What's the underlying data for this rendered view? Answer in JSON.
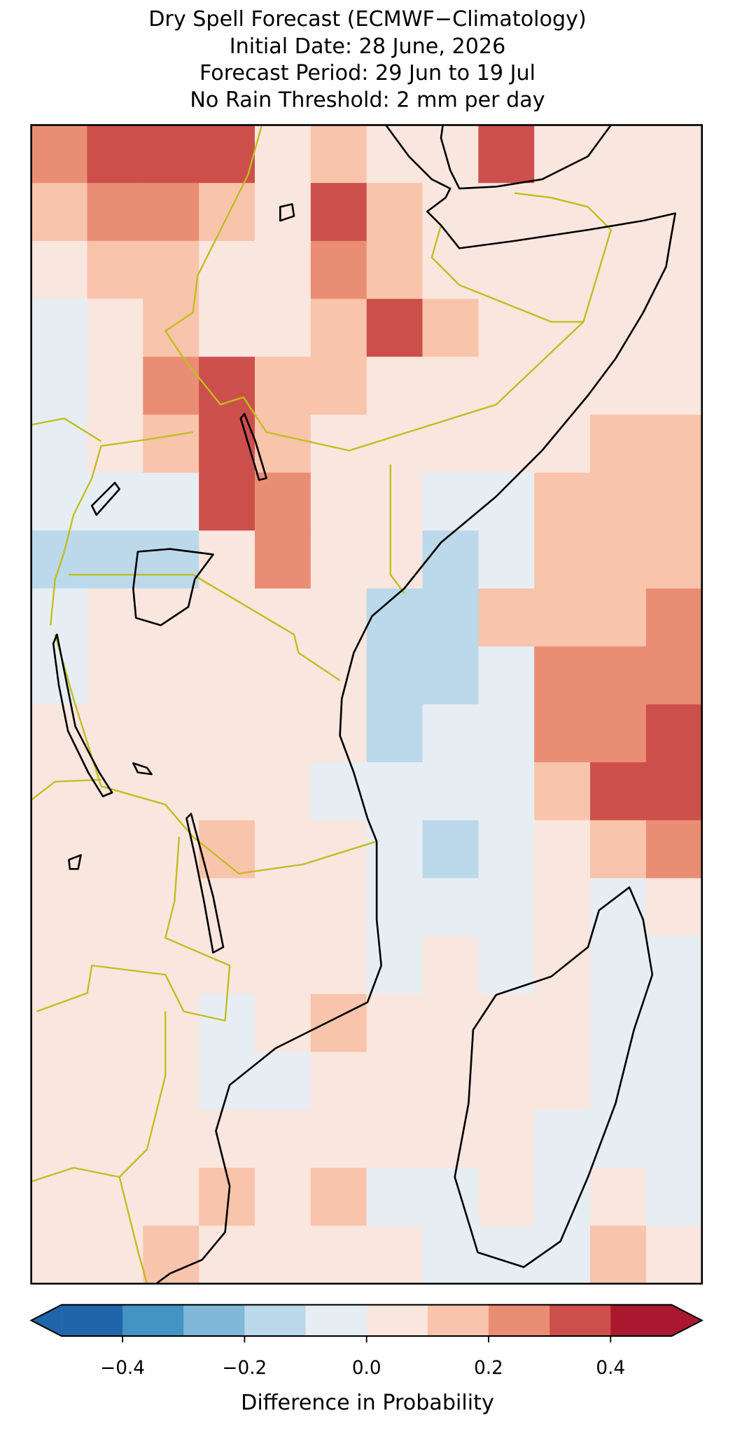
{
  "chart_data": {
    "type": "map",
    "title": [
      "Dry Spell Forecast (ECMWF−Climatology)",
      "Initial Date: 28 June, 2026",
      "Forecast Period: 29 Jun to 19 Jul",
      "No Rain Threshold: 2 mm per day"
    ],
    "field": {
      "values": [
        [
          0.25,
          0.35,
          0.35,
          0.35,
          0.05,
          0.15,
          0.05,
          0.05,
          0.35,
          0.05,
          0.05,
          0.05
        ],
        [
          0.15,
          0.25,
          0.25,
          0.15,
          0.05,
          0.35,
          0.15,
          0.05,
          0.05,
          0.05,
          0.05,
          0.05
        ],
        [
          0.05,
          0.15,
          0.15,
          0.05,
          0.05,
          0.25,
          0.15,
          0.05,
          0.05,
          0.05,
          0.05,
          0.05
        ],
        [
          -0.05,
          0.05,
          0.15,
          0.05,
          0.05,
          0.15,
          0.35,
          0.15,
          0.05,
          0.05,
          0.05,
          0.05
        ],
        [
          -0.05,
          0.05,
          0.25,
          0.35,
          0.15,
          0.15,
          0.05,
          0.05,
          0.05,
          0.05,
          0.05,
          0.05
        ],
        [
          -0.05,
          0.05,
          0.15,
          0.35,
          0.15,
          0.05,
          0.05,
          0.05,
          0.05,
          0.05,
          0.15,
          0.15
        ],
        [
          -0.05,
          -0.05,
          -0.05,
          0.35,
          0.25,
          0.05,
          0.05,
          -0.05,
          -0.05,
          0.15,
          0.15,
          0.15
        ],
        [
          -0.15,
          -0.15,
          -0.15,
          0.05,
          0.25,
          0.05,
          0.05,
          -0.15,
          -0.05,
          0.15,
          0.15,
          0.15
        ],
        [
          -0.05,
          0.05,
          0.05,
          0.05,
          0.05,
          0.05,
          -0.15,
          -0.15,
          0.15,
          0.15,
          0.15,
          0.25
        ],
        [
          -0.05,
          0.05,
          0.05,
          0.05,
          0.05,
          0.05,
          -0.15,
          -0.15,
          -0.05,
          0.25,
          0.25,
          0.25
        ],
        [
          0.05,
          0.05,
          0.05,
          0.05,
          0.05,
          0.05,
          -0.15,
          -0.05,
          -0.05,
          0.25,
          0.25,
          0.35
        ],
        [
          0.05,
          0.05,
          0.05,
          0.05,
          0.05,
          -0.05,
          -0.05,
          -0.05,
          -0.05,
          0.15,
          0.35,
          0.35
        ],
        [
          0.05,
          0.05,
          0.05,
          0.15,
          0.05,
          0.05,
          -0.05,
          -0.15,
          -0.05,
          0.05,
          0.15,
          0.25
        ],
        [
          0.05,
          0.05,
          0.05,
          0.05,
          0.05,
          0.05,
          -0.05,
          -0.05,
          -0.05,
          0.05,
          -0.05,
          0.05
        ],
        [
          0.05,
          0.05,
          0.05,
          0.05,
          0.05,
          0.05,
          -0.05,
          0.05,
          -0.05,
          0.05,
          -0.05,
          -0.05
        ],
        [
          0.05,
          0.05,
          0.05,
          -0.05,
          0.05,
          0.15,
          0.05,
          0.05,
          0.05,
          0.05,
          -0.05,
          -0.05
        ],
        [
          0.05,
          0.05,
          0.05,
          -0.05,
          -0.05,
          0.05,
          0.05,
          0.05,
          0.05,
          0.05,
          -0.05,
          -0.05
        ],
        [
          0.05,
          0.05,
          0.05,
          0.05,
          0.05,
          0.05,
          0.05,
          0.05,
          0.05,
          -0.05,
          -0.05,
          -0.05
        ],
        [
          0.05,
          0.05,
          0.05,
          0.15,
          0.05,
          0.15,
          -0.05,
          -0.05,
          0.05,
          -0.05,
          0.05,
          -0.05
        ],
        [
          0.05,
          0.05,
          0.15,
          0.05,
          0.05,
          0.05,
          0.05,
          -0.05,
          -0.05,
          -0.05,
          0.15,
          0.05
        ]
      ]
    },
    "colorbar": {
      "label": "Difference in Probability",
      "levels": [
        -0.5,
        -0.4,
        -0.3,
        -0.2,
        -0.1,
        0,
        0.1,
        0.2,
        0.3,
        0.4,
        0.5
      ],
      "colors": [
        "#2065aa",
        "#4393c3",
        "#80b8d9",
        "#bbd9ea",
        "#e6eef3",
        "#f9e6de",
        "#f8c4ab",
        "#e98e74",
        "#cd4f4b",
        "#a9182e"
      ],
      "extend": "both",
      "ticks": [
        {
          "value": -0.4,
          "label": "−0.4"
        },
        {
          "value": -0.2,
          "label": "−0.2"
        },
        {
          "value": 0,
          "label": "0.0"
        },
        0.2,
        0.4
      ]
    }
  }
}
